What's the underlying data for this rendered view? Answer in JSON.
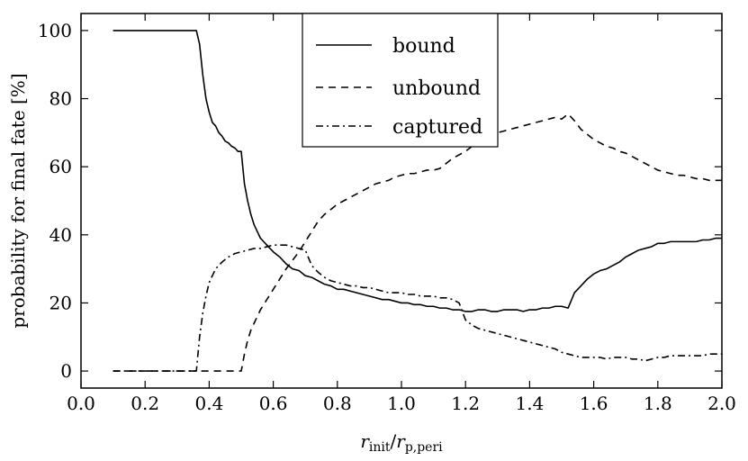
{
  "chart_data": {
    "type": "line",
    "xlabel": {
      "var": "r",
      "sub1": "init",
      "sep": "/",
      "var2": "r",
      "sub2": "p,peri"
    },
    "ylabel": "probability for final fate [%]",
    "xlim": [
      0.0,
      2.0
    ],
    "ylim": [
      -5,
      105
    ],
    "xticks": [
      "0.0",
      "0.2",
      "0.4",
      "0.6",
      "0.8",
      "1.0",
      "1.2",
      "1.4",
      "1.6",
      "1.8",
      "2.0"
    ],
    "yticks": [
      "0",
      "20",
      "40",
      "60",
      "80",
      "100"
    ],
    "grid": false,
    "legend_position": "top-center",
    "series": [
      {
        "name": "bound",
        "style": "solid",
        "x": [
          0.1,
          0.36,
          0.37,
          0.38,
          0.39,
          0.4,
          0.41,
          0.42,
          0.43,
          0.44,
          0.45,
          0.46,
          0.47,
          0.48,
          0.49,
          0.5,
          0.51,
          0.52,
          0.53,
          0.54,
          0.55,
          0.56,
          0.57,
          0.58,
          0.59,
          0.6,
          0.62,
          0.64,
          0.66,
          0.68,
          0.7,
          0.72,
          0.74,
          0.76,
          0.78,
          0.8,
          0.82,
          0.84,
          0.86,
          0.88,
          0.9,
          0.92,
          0.94,
          0.96,
          0.98,
          1.0,
          1.02,
          1.04,
          1.06,
          1.08,
          1.1,
          1.12,
          1.14,
          1.16,
          1.18,
          1.2,
          1.22,
          1.24,
          1.26,
          1.28,
          1.3,
          1.32,
          1.34,
          1.36,
          1.38,
          1.4,
          1.42,
          1.44,
          1.46,
          1.48,
          1.5,
          1.52,
          1.54,
          1.56,
          1.58,
          1.6,
          1.62,
          1.64,
          1.66,
          1.68,
          1.7,
          1.72,
          1.74,
          1.76,
          1.78,
          1.8,
          1.82,
          1.84,
          1.86,
          1.88,
          1.9,
          1.92,
          1.94,
          1.96,
          1.98,
          2.0
        ],
        "y": [
          100,
          100,
          96,
          87,
          80,
          76,
          73,
          72,
          70,
          69,
          67.5,
          67,
          66,
          65.5,
          64.5,
          64.5,
          55,
          50,
          46,
          43,
          41,
          39,
          38,
          37,
          36,
          35,
          33.5,
          31.5,
          30,
          29.5,
          28,
          27.5,
          26.5,
          25.5,
          25,
          24,
          24,
          23.5,
          23,
          22.5,
          22,
          21.5,
          21,
          21,
          20.5,
          20,
          20,
          19.5,
          19.5,
          19,
          19,
          18.5,
          18.5,
          18,
          18,
          17.5,
          17.5,
          18,
          18,
          17.5,
          17.5,
          18,
          18,
          18,
          17.5,
          18,
          18,
          18.5,
          18.5,
          19,
          19,
          18.5,
          23,
          25,
          27,
          28.5,
          29.5,
          30,
          31,
          32,
          33.5,
          34.5,
          35.5,
          36,
          36.5,
          37.5,
          37.5,
          38,
          38,
          38,
          38,
          38,
          38.5,
          38.5,
          39,
          39
        ]
      },
      {
        "name": "unbound",
        "style": "dashed",
        "x": [
          0.1,
          0.5,
          0.51,
          0.52,
          0.53,
          0.54,
          0.55,
          0.56,
          0.58,
          0.6,
          0.62,
          0.64,
          0.66,
          0.68,
          0.7,
          0.72,
          0.74,
          0.76,
          0.78,
          0.8,
          0.82,
          0.84,
          0.86,
          0.88,
          0.9,
          0.92,
          0.94,
          0.96,
          0.98,
          1.0,
          1.02,
          1.04,
          1.06,
          1.08,
          1.1,
          1.12,
          1.14,
          1.16,
          1.18,
          1.2,
          1.22,
          1.24,
          1.26,
          1.28,
          1.3,
          1.32,
          1.34,
          1.36,
          1.38,
          1.4,
          1.42,
          1.44,
          1.46,
          1.48,
          1.5,
          1.52,
          1.54,
          1.56,
          1.58,
          1.6,
          1.62,
          1.64,
          1.66,
          1.68,
          1.7,
          1.72,
          1.74,
          1.76,
          1.78,
          1.8,
          1.82,
          1.84,
          1.86,
          1.88,
          1.9,
          1.92,
          1.94,
          1.96,
          1.98,
          2.0
        ],
        "y": [
          0,
          0,
          5,
          9,
          12,
          14,
          16,
          18,
          21,
          24,
          27,
          30,
          32.5,
          35,
          38,
          41,
          44,
          46,
          47.5,
          49,
          50,
          51,
          52,
          53,
          54,
          55,
          55.5,
          56,
          57,
          57.5,
          58,
          58,
          58.5,
          59,
          59,
          59.5,
          61,
          62.5,
          63.5,
          64.5,
          66,
          67,
          68,
          69,
          70,
          70.5,
          71,
          71.5,
          72,
          72.5,
          73,
          73.5,
          74,
          74.5,
          74,
          75.5,
          73.5,
          71,
          69.5,
          68,
          67,
          66,
          65.5,
          64.5,
          64,
          63,
          62,
          61,
          60,
          59,
          58.5,
          58,
          57.5,
          57.5,
          57,
          56.5,
          56.5,
          56,
          56,
          56
        ]
      },
      {
        "name": "captured",
        "style": "dashdot",
        "x": [
          0.1,
          0.36,
          0.37,
          0.38,
          0.39,
          0.4,
          0.41,
          0.42,
          0.44,
          0.46,
          0.48,
          0.5,
          0.52,
          0.54,
          0.56,
          0.58,
          0.6,
          0.62,
          0.64,
          0.66,
          0.68,
          0.7,
          0.72,
          0.74,
          0.76,
          0.78,
          0.8,
          0.82,
          0.84,
          0.86,
          0.88,
          0.9,
          0.92,
          0.94,
          0.96,
          0.98,
          1.0,
          1.02,
          1.04,
          1.06,
          1.08,
          1.1,
          1.12,
          1.14,
          1.16,
          1.18,
          1.2,
          1.22,
          1.24,
          1.26,
          1.28,
          1.3,
          1.32,
          1.34,
          1.36,
          1.38,
          1.4,
          1.42,
          1.44,
          1.46,
          1.48,
          1.5,
          1.52,
          1.54,
          1.56,
          1.58,
          1.6,
          1.62,
          1.64,
          1.66,
          1.68,
          1.7,
          1.72,
          1.74,
          1.76,
          1.78,
          1.8,
          1.82,
          1.84,
          1.86,
          1.88,
          1.9,
          1.92,
          1.94,
          1.96,
          1.98,
          2.0
        ],
        "y": [
          0,
          0,
          10,
          17,
          22,
          26,
          28,
          30,
          32,
          33.5,
          34.5,
          35,
          35.5,
          36,
          36,
          36.5,
          37,
          37,
          37,
          36.5,
          36,
          35.5,
          31,
          29,
          27.5,
          26.5,
          26,
          25.5,
          25,
          25,
          24.5,
          24.5,
          24,
          23.5,
          23,
          23,
          23,
          22.5,
          22.5,
          22,
          22,
          22,
          21.5,
          21.5,
          21,
          20,
          15,
          13.5,
          12.5,
          12,
          11.5,
          11,
          10.5,
          10,
          9.5,
          9,
          8.5,
          8,
          7.5,
          7,
          6.5,
          5.5,
          5,
          4.5,
          4,
          4,
          4,
          4,
          3.5,
          4,
          4,
          4,
          3.5,
          3.5,
          3,
          3.5,
          4,
          4,
          4.5,
          4.5,
          4.5,
          4.5,
          4.5,
          4.5,
          5,
          5,
          5
        ]
      }
    ]
  }
}
